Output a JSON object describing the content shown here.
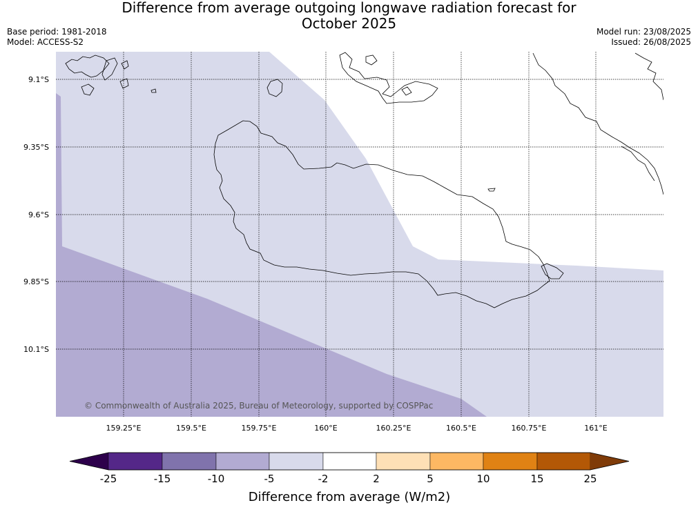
{
  "title": {
    "line1": "Difference from average outgoing longwave radiation forecast for",
    "line2": "October 2025"
  },
  "meta": {
    "base_period": "Base period: 1981-2018",
    "model": "Model: ACCESS-S2",
    "model_run": "Model run: 23/08/2025",
    "issued": "Issued: 26/08/2025"
  },
  "map": {
    "lat_labels": [
      "9.1°S",
      "9.35°S",
      "9.6°S",
      "9.85°S",
      "10.1°S"
    ],
    "lon_labels": [
      "159.25°E",
      "159.5°E",
      "159.75°E",
      "160°E",
      "160.25°E",
      "160.5°E",
      "160.75°E",
      "161°E"
    ],
    "copyright": "© Commonwealth of Australia 2025, Bureau of Meteorology, supported by COSPPac"
  },
  "colorbar": {
    "label": "Difference from average (W/m2)",
    "ticks": [
      "-25",
      "-15",
      "-10",
      "-5",
      "-2",
      "2",
      "5",
      "10",
      "15",
      "25"
    ],
    "colors": [
      "#2d004b",
      "#542788",
      "#8073ac",
      "#b2abd2",
      "#d8daeb",
      "#ffffff",
      "#fee0b6",
      "#fdb863",
      "#e08214",
      "#b35806",
      "#7f3b08"
    ]
  }
}
